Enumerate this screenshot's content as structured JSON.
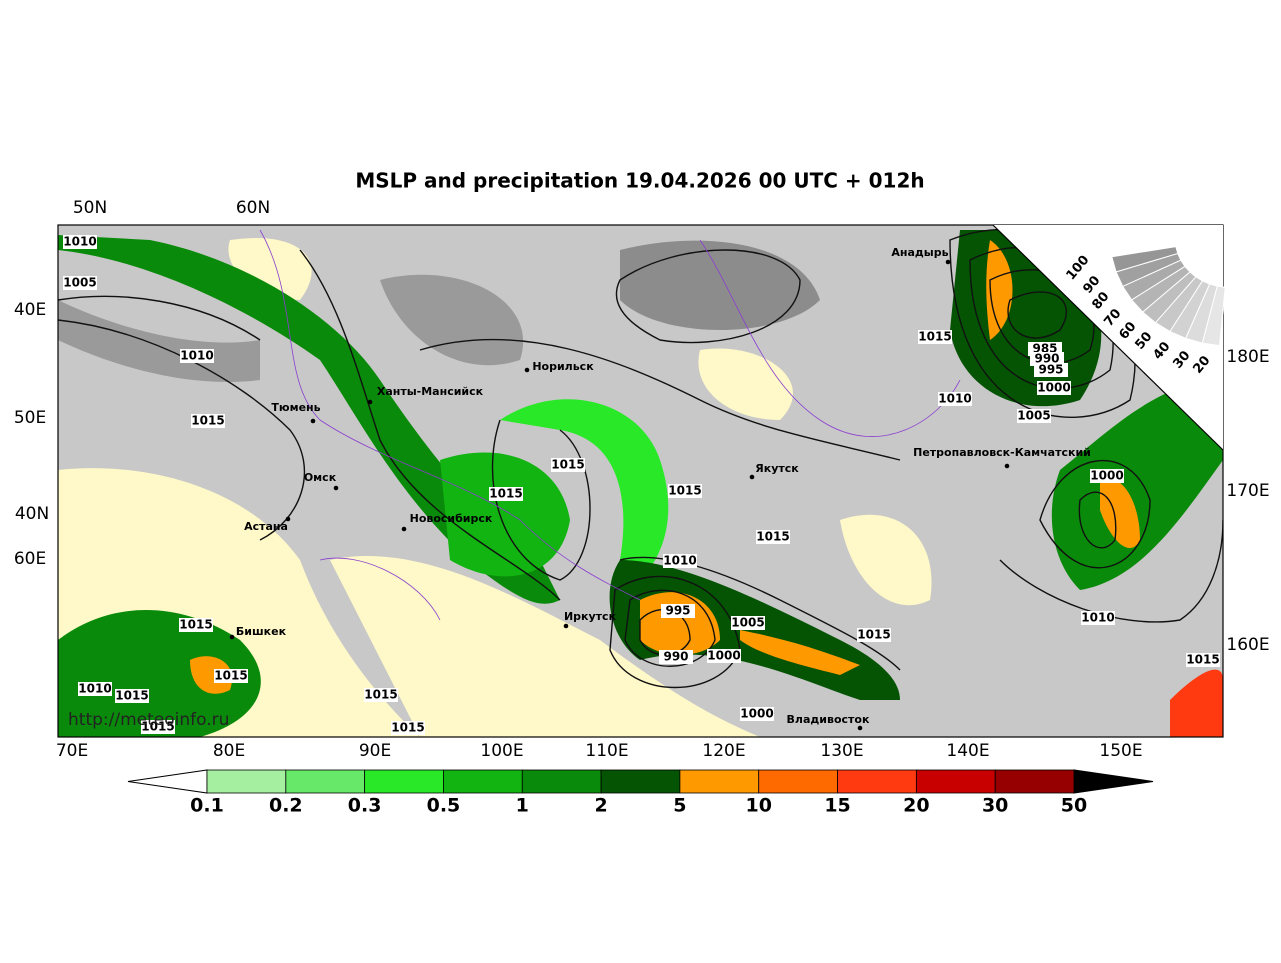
{
  "title": "MSLP and precipitation 19.04.2026 00 UTC + 012h",
  "lat_labels": [
    "50N",
    "60N",
    "40E",
    "50E",
    "40N",
    "60E",
    "180E",
    "170E",
    "160E"
  ],
  "lon_labels": [
    "70E",
    "80E",
    "90E",
    "100E",
    "110E",
    "120E",
    "130E",
    "140E",
    "150E"
  ],
  "cities": [
    "Анадырь",
    "Норильск",
    "Ханты-Мансийск",
    "Тюмень",
    "Омск",
    "Якутск",
    "Петропавловск-Камчатский",
    "Астана",
    "Новосибирск",
    "Иркутск",
    "Бишкек",
    "Владивосток"
  ],
  "isobar_labels": [
    "1010",
    "1005",
    "1010",
    "1015",
    "1015",
    "1015",
    "1015",
    "1015",
    "1010",
    "995",
    "990",
    "1005",
    "1000",
    "1015",
    "1000",
    "1015",
    "1010",
    "985",
    "990",
    "995",
    "1000",
    "1005",
    "1000",
    "1010",
    "1015",
    "1015",
    "1015",
    "1010",
    "1015",
    "1015",
    "1015",
    "1015"
  ],
  "watermark": "http://meteoinfo.ru",
  "colorbar": {
    "ticks": [
      0.1,
      0.2,
      0.3,
      0.5,
      1,
      2,
      5,
      10,
      15,
      20,
      30,
      50
    ],
    "colors": [
      "#a4f0a0",
      "#68e868",
      "#28e828",
      "#12b412",
      "#0a8a0a",
      "#045404",
      "#ff9900",
      "#ff6a00",
      "#ff3a10",
      "#c80000",
      "#960000"
    ],
    "under_color": "#ffffff",
    "over_color": "#000000"
  },
  "cloud_scale": [
    100,
    90,
    80,
    70,
    60,
    50,
    40,
    30,
    20
  ]
}
